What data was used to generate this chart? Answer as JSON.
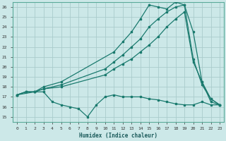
{
  "title": "",
  "xlabel": "Humidex (Indice chaleur)",
  "xlim": [
    -0.5,
    23.5
  ],
  "ylim": [
    14.5,
    26.5
  ],
  "xticks": [
    0,
    1,
    2,
    3,
    4,
    5,
    6,
    7,
    8,
    9,
    10,
    11,
    12,
    13,
    14,
    15,
    16,
    17,
    18,
    19,
    20,
    21,
    22,
    23
  ],
  "yticks": [
    15,
    16,
    17,
    18,
    19,
    20,
    21,
    22,
    23,
    24,
    25,
    26
  ],
  "bg_color": "#cce8e8",
  "line_color": "#1a7a6e",
  "grid_color": "#aacccc",
  "lines": [
    {
      "x": [
        0,
        1,
        2,
        3,
        4,
        5,
        6,
        7,
        8,
        9,
        10,
        11,
        12,
        13,
        14,
        15,
        16,
        17,
        18,
        19,
        20,
        21,
        22,
        23
      ],
      "y": [
        17.2,
        17.5,
        17.5,
        17.5,
        16.5,
        16.2,
        16.0,
        15.8,
        15.0,
        16.2,
        17.0,
        17.2,
        17.0,
        17.0,
        17.0,
        16.8,
        16.7,
        16.5,
        16.3,
        16.2,
        16.2,
        16.5,
        16.2,
        16.2
      ]
    },
    {
      "x": [
        0,
        1,
        2,
        3,
        5,
        10,
        11,
        12,
        13,
        14,
        15,
        16,
        17,
        18,
        19,
        20,
        21,
        22,
        23
      ],
      "y": [
        17.2,
        17.5,
        17.5,
        17.8,
        18.0,
        19.2,
        19.8,
        20.3,
        20.8,
        21.5,
        22.2,
        23.0,
        24.0,
        24.8,
        25.5,
        20.5,
        18.5,
        16.8,
        16.2
      ]
    },
    {
      "x": [
        0,
        1,
        2,
        3,
        5,
        10,
        11,
        12,
        13,
        14,
        15,
        16,
        17,
        18,
        19,
        20,
        21,
        22,
        23
      ],
      "y": [
        17.2,
        17.5,
        17.5,
        17.8,
        18.2,
        19.8,
        20.5,
        21.2,
        22.0,
        22.8,
        24.0,
        24.8,
        25.5,
        26.0,
        26.2,
        23.5,
        18.5,
        16.5,
        16.2
      ]
    },
    {
      "x": [
        0,
        2,
        3,
        5,
        11,
        12,
        13,
        14,
        15,
        16,
        17,
        18,
        19,
        20,
        21,
        22,
        23
      ],
      "y": [
        17.2,
        17.5,
        18.0,
        18.5,
        21.5,
        22.5,
        23.5,
        24.8,
        26.2,
        26.0,
        25.8,
        26.5,
        26.2,
        20.8,
        18.2,
        16.8,
        16.2
      ]
    }
  ]
}
